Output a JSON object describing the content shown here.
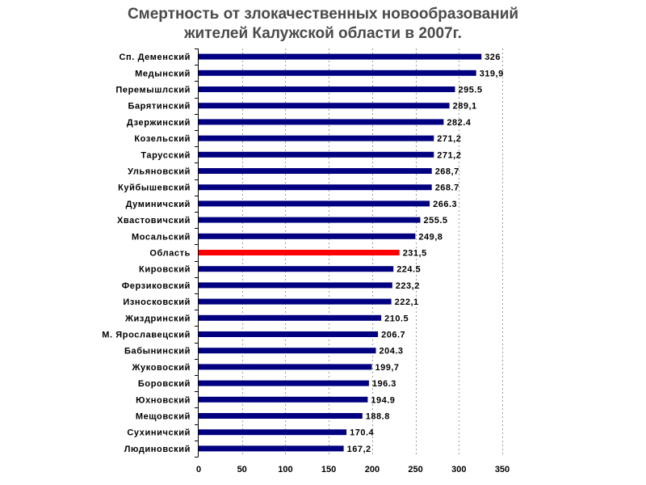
{
  "title": {
    "line1": "Смертность от злокачественных новообразований",
    "line2": "жителей Калужской области в 2007г."
  },
  "chart_data": {
    "type": "bar",
    "orientation": "horizontal",
    "categories": [
      "Сп. Деменский",
      "Медынский",
      "Перемышлский",
      "Барятинский",
      "Дзержинский",
      "Козельский",
      "Тарусский",
      "Ульяновский",
      "Куйбышевский",
      "Думиничский",
      "Хвастовичский",
      "Мосальский",
      "Область",
      "Кировский",
      "Ферзиковский",
      "Износковский",
      "Жиздринский",
      "М. Ярославецский",
      "Бабынинский",
      "Жуковоский",
      "Боровский",
      "Юхновский",
      "Мещовский",
      "Сухиничский",
      "Людиновский"
    ],
    "values": [
      326,
      319.9,
      295.5,
      289.1,
      282.4,
      271.2,
      271.2,
      268.7,
      268.7,
      266.3,
      255.5,
      249.8,
      231.5,
      224.5,
      223.2,
      222.1,
      210.5,
      206.7,
      204.3,
      199.7,
      196.3,
      194.9,
      188.8,
      170.4,
      167.2
    ],
    "value_labels": [
      "326",
      "319,9",
      "295.5",
      "289,1",
      "282.4",
      "271,2",
      "271,2",
      "268,7",
      "268.7",
      "266.3",
      "255.5",
      "249,8",
      "231,5",
      "224.5",
      "223,2",
      "222,1",
      "210.5",
      "206.7",
      "204.3",
      "199,7",
      "196.3",
      "194.9",
      "188.8",
      "170.4",
      "167,2"
    ],
    "highlight_category": "Область",
    "xlim": [
      0,
      350
    ],
    "xticks": [
      "0",
      "50",
      "100",
      "150",
      "200",
      "250",
      "300",
      "350"
    ],
    "grid": "vertical dashed",
    "colors": {
      "bar": "#000080",
      "highlight": "#ff0000",
      "grid": "#9a9a9a",
      "axis": "#000000",
      "title": "#4a4a4a"
    },
    "xlabel": "",
    "ylabel": ""
  }
}
